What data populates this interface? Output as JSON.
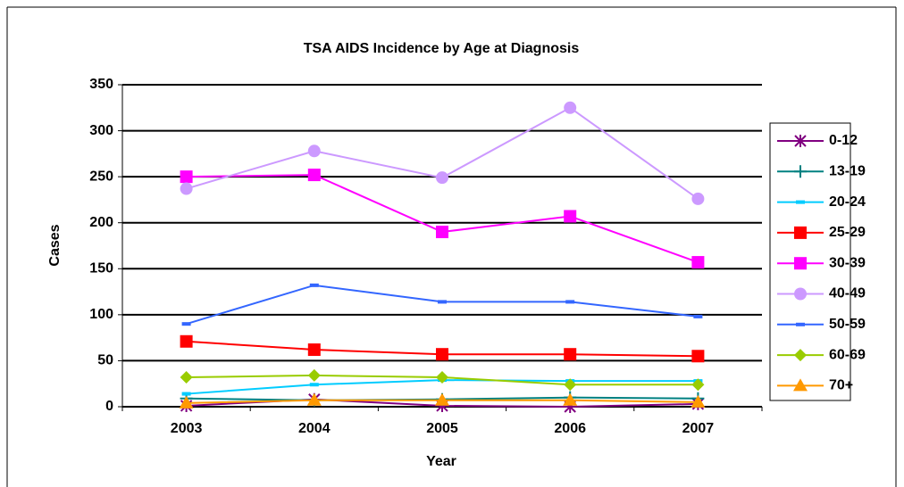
{
  "chart_data": {
    "type": "line",
    "title": "TSA AIDS Incidence by Age at Diagnosis",
    "x_label": "Year",
    "y_label": "Cases",
    "categories": [
      "2003",
      "2004",
      "2005",
      "2006",
      "2007"
    ],
    "ylim": [
      0,
      350
    ],
    "yticks": [
      0,
      50,
      100,
      150,
      200,
      250,
      300,
      350
    ],
    "grid": true,
    "legend": "right",
    "series": [
      {
        "name": "0-12",
        "color": "#800080",
        "marker": "star",
        "values": [
          1,
          8,
          1,
          0,
          3
        ]
      },
      {
        "name": "13-19",
        "color": "#008080",
        "marker": "plus",
        "values": [
          9,
          7,
          8,
          10,
          9
        ]
      },
      {
        "name": "20-24",
        "color": "#00ccff",
        "marker": "dash",
        "values": [
          14,
          24,
          29,
          28,
          28
        ]
      },
      {
        "name": "25-29",
        "color": "#ff0000",
        "marker": "square",
        "values": [
          71,
          62,
          57,
          57,
          55
        ]
      },
      {
        "name": "30-39",
        "color": "#ff00ff",
        "marker": "square",
        "values": [
          250,
          252,
          190,
          207,
          157
        ]
      },
      {
        "name": "40-49",
        "color": "#cc99ff",
        "marker": "circle",
        "values": [
          237,
          278,
          249,
          325,
          226
        ]
      },
      {
        "name": "50-59",
        "color": "#3366ff",
        "marker": "dash",
        "values": [
          90,
          132,
          114,
          114,
          98
        ]
      },
      {
        "name": "60-69",
        "color": "#99cc00",
        "marker": "diamond",
        "values": [
          32,
          34,
          32,
          24,
          24
        ]
      },
      {
        "name": "70+",
        "color": "#ff9900",
        "marker": "triangle",
        "values": [
          4,
          7,
          7,
          7,
          5
        ]
      }
    ]
  }
}
